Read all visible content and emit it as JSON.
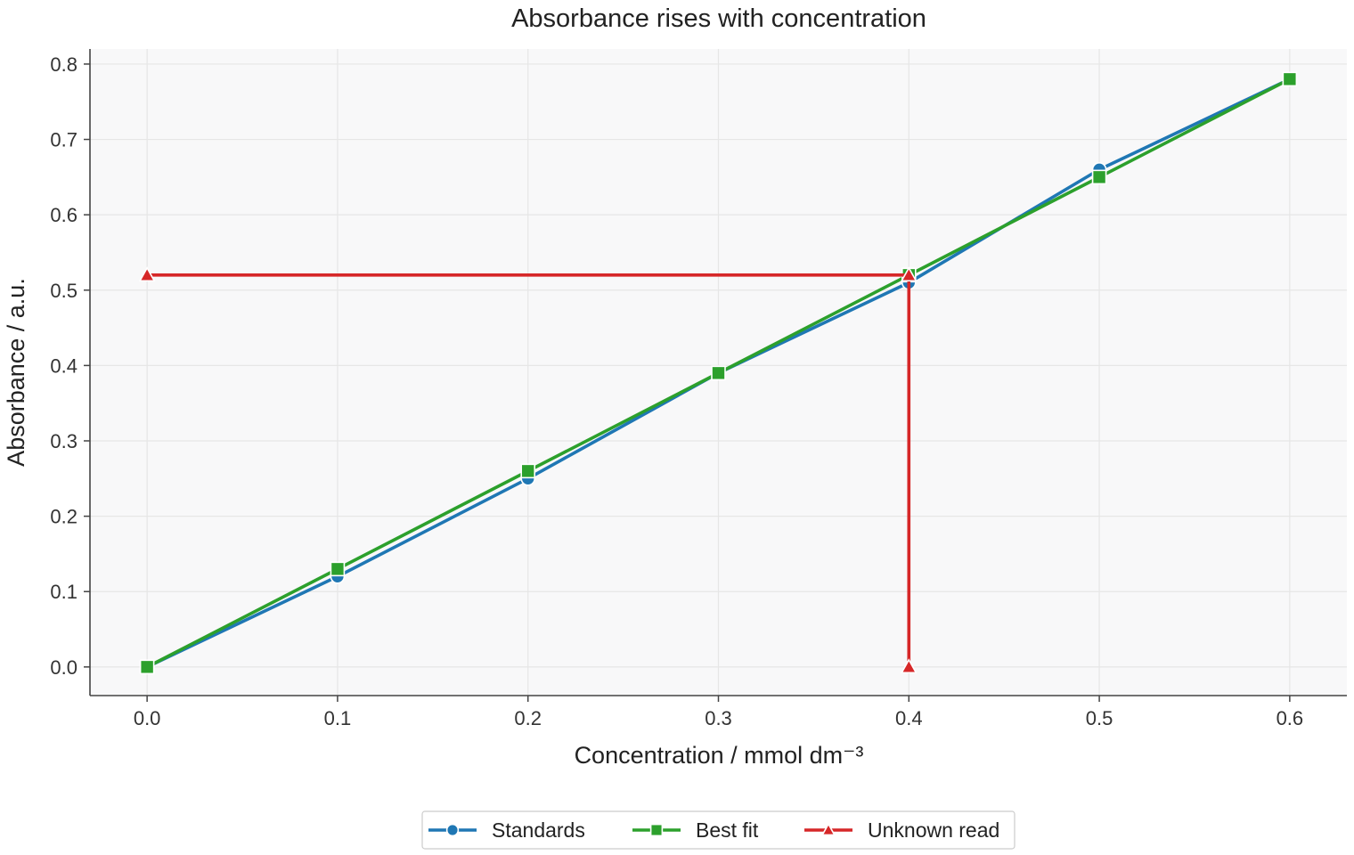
{
  "chart_data": {
    "type": "line",
    "title": "Absorbance rises with concentration",
    "xlabel": "Concentration / mmol dm⁻³",
    "ylabel": "Absorbance / a.u.",
    "xlim": [
      -0.03,
      0.63
    ],
    "ylim": [
      -0.038,
      0.82
    ],
    "xticks": [
      0.0,
      0.1,
      0.2,
      0.3,
      0.4,
      0.5,
      0.6
    ],
    "xtick_labels": [
      "0.0",
      "0.1",
      "0.2",
      "0.3",
      "0.4",
      "0.5",
      "0.6"
    ],
    "yticks": [
      0.0,
      0.1,
      0.2,
      0.3,
      0.4,
      0.5,
      0.6,
      0.7,
      0.8
    ],
    "ytick_labels": [
      "0.0",
      "0.1",
      "0.2",
      "0.3",
      "0.4",
      "0.5",
      "0.6",
      "0.7",
      "0.8"
    ],
    "grid": true,
    "legend_position": "bottom-center",
    "series": [
      {
        "name": "Standards",
        "color": "#1f77b4",
        "marker": "circle",
        "x": [
          0.0,
          0.1,
          0.2,
          0.3,
          0.4,
          0.5,
          0.6
        ],
        "y": [
          0.0,
          0.12,
          0.25,
          0.39,
          0.51,
          0.66,
          0.78
        ]
      },
      {
        "name": "Best fit",
        "color": "#2ca02c",
        "marker": "square",
        "x": [
          0.0,
          0.1,
          0.2,
          0.3,
          0.4,
          0.5,
          0.6
        ],
        "y": [
          0.0,
          0.13,
          0.26,
          0.39,
          0.52,
          0.65,
          0.78
        ]
      },
      {
        "name": "Unknown read",
        "color": "#d62728",
        "marker": "triangle",
        "x": [
          0.0,
          0.4,
          0.4
        ],
        "y": [
          0.52,
          0.52,
          0.0
        ]
      }
    ]
  }
}
